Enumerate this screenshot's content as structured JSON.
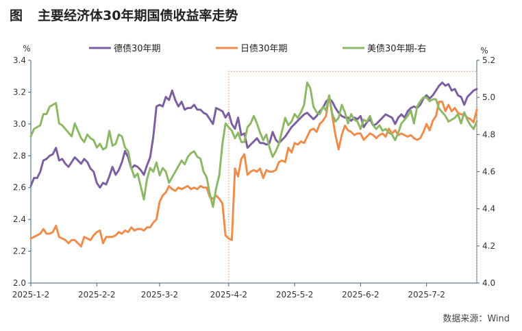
{
  "page": {
    "figure_label": "图",
    "title": "主要经济体30年期国债收益率走势",
    "source": "数据来源：Wind"
  },
  "chart_data": {
    "type": "line",
    "title": "主要经济体30年期国债收益率走势",
    "left_axis_unit": "%",
    "right_axis_unit": "%",
    "ylim_left": [
      2.0,
      3.4
    ],
    "ylim_right": [
      4.0,
      5.2
    ],
    "yticks_left": [
      "2.0",
      "2.2",
      "2.4",
      "2.6",
      "2.8",
      "3.0",
      "3.2",
      "3.4"
    ],
    "yticks_right": [
      "4.0",
      "4.2",
      "4.4",
      "4.6",
      "4.8",
      "5.0",
      "5.2"
    ],
    "xlim": [
      0,
      142
    ],
    "xticks": [
      {
        "label": "2025-1-2",
        "t": 0
      },
      {
        "label": "2025-2-2",
        "t": 21
      },
      {
        "label": "2025-3-2",
        "t": 41
      },
      {
        "label": "2025-4-2",
        "t": 63
      },
      {
        "label": "2025-5-2",
        "t": 84
      },
      {
        "label": "2025-6-2",
        "t": 105
      },
      {
        "label": "2025-7-2",
        "t": 126
      }
    ],
    "highlight_region": {
      "t_start": 63,
      "t_end": 142,
      "y_top_left": 3.33,
      "style": "dotted"
    },
    "series": [
      {
        "name": "德债30年期",
        "axis": "left",
        "color": "#7b5fa0",
        "x": [
          0,
          1,
          2,
          3,
          4,
          5,
          6,
          7,
          8,
          9,
          10,
          11,
          12,
          13,
          14,
          15,
          16,
          17,
          18,
          19,
          20,
          21,
          22,
          23,
          24,
          25,
          26,
          27,
          28,
          29,
          30,
          31,
          32,
          33,
          34,
          35,
          36,
          37,
          38,
          39,
          40,
          41,
          42,
          43,
          44,
          45,
          46,
          47,
          48,
          49,
          50,
          51,
          52,
          53,
          54,
          55,
          56,
          57,
          58,
          59,
          60,
          61,
          62,
          63,
          64,
          65,
          66,
          67,
          68,
          69,
          70,
          71,
          72,
          73,
          74,
          75,
          76,
          77,
          78,
          79,
          80,
          81,
          82,
          83,
          84,
          85,
          86,
          87,
          88,
          89,
          90,
          91,
          92,
          93,
          94,
          95,
          96,
          97,
          98,
          99,
          100,
          101,
          102,
          103,
          104,
          105,
          106,
          107,
          108,
          109,
          110,
          111,
          112,
          113,
          114,
          115,
          116,
          117,
          118,
          119,
          120,
          121,
          122,
          123,
          124,
          125,
          126,
          127,
          128,
          129,
          130,
          131,
          132,
          133,
          134,
          135,
          136,
          137,
          138,
          139,
          140,
          141,
          142
        ],
        "y": [
          2.61,
          2.66,
          2.66,
          2.7,
          2.77,
          2.78,
          2.8,
          2.81,
          2.85,
          2.77,
          2.78,
          2.75,
          2.73,
          2.76,
          2.79,
          2.77,
          2.75,
          2.78,
          2.76,
          2.72,
          2.7,
          2.63,
          2.6,
          2.63,
          2.62,
          2.67,
          2.73,
          2.68,
          2.71,
          2.76,
          2.83,
          2.79,
          2.72,
          2.74,
          2.73,
          2.71,
          2.68,
          2.74,
          2.79,
          2.92,
          3.11,
          3.12,
          3.11,
          3.17,
          3.15,
          3.21,
          3.15,
          3.11,
          3.14,
          3.09,
          3.1,
          3.1,
          3.12,
          3.09,
          3.09,
          3.07,
          3.06,
          3.03,
          3.0,
          3.1,
          3.09,
          3.08,
          3.04,
          3.07,
          3.0,
          2.97,
          3.04,
          2.93,
          2.94,
          2.85,
          2.87,
          2.89,
          2.91,
          2.88,
          2.88,
          2.87,
          2.88,
          2.95,
          2.9,
          2.88,
          2.9,
          2.92,
          2.95,
          2.98,
          3.0,
          3.02,
          3.04,
          3.06,
          3.07,
          3.05,
          3.03,
          3.05,
          3.08,
          3.1,
          3.14,
          3.16,
          3.14,
          3.1,
          3.07,
          3.05,
          3.04,
          3.04,
          3.02,
          3.04,
          3.03,
          3.05,
          2.98,
          3.01,
          3.03,
          2.99,
          3.0,
          3.02,
          3.04,
          3.06,
          3.05,
          3.04,
          3.0,
          3.04,
          3.06,
          3.04,
          3.08,
          3.1,
          3.11,
          3.1,
          3.12,
          3.16,
          3.18,
          3.16,
          3.18,
          3.21,
          3.24,
          3.26,
          3.24,
          3.25,
          3.21,
          3.22,
          3.18,
          3.17,
          3.12,
          3.17,
          3.19,
          3.21,
          3.22
        ]
      },
      {
        "name": "日债30年期",
        "axis": "left",
        "color": "#ef8c4a",
        "x": [
          0,
          1,
          2,
          3,
          4,
          5,
          6,
          7,
          8,
          9,
          10,
          11,
          12,
          13,
          14,
          15,
          16,
          17,
          18,
          19,
          20,
          21,
          22,
          23,
          24,
          25,
          26,
          27,
          28,
          29,
          30,
          31,
          32,
          33,
          34,
          35,
          36,
          37,
          38,
          39,
          40,
          41,
          42,
          43,
          44,
          45,
          46,
          47,
          48,
          49,
          50,
          51,
          52,
          53,
          54,
          55,
          56,
          57,
          58,
          59,
          60,
          61,
          62,
          63,
          64,
          65,
          66,
          67,
          68,
          69,
          70,
          71,
          72,
          73,
          74,
          75,
          76,
          77,
          78,
          79,
          80,
          81,
          82,
          83,
          84,
          85,
          86,
          87,
          88,
          89,
          90,
          91,
          92,
          93,
          94,
          95,
          96,
          97,
          98,
          99,
          100,
          101,
          102,
          103,
          104,
          105,
          106,
          107,
          108,
          109,
          110,
          111,
          112,
          113,
          114,
          115,
          116,
          117,
          118,
          119,
          120,
          121,
          122,
          123,
          124,
          125,
          126,
          127,
          128,
          129,
          130,
          131,
          132,
          133,
          134,
          135,
          136,
          137,
          138,
          139,
          140,
          141,
          142
        ],
        "y": [
          2.28,
          2.29,
          2.3,
          2.31,
          2.34,
          2.31,
          2.31,
          2.32,
          2.36,
          2.29,
          2.28,
          2.27,
          2.25,
          2.27,
          2.27,
          2.25,
          2.23,
          2.29,
          2.28,
          2.27,
          2.3,
          2.32,
          2.33,
          2.25,
          2.29,
          2.29,
          2.29,
          2.3,
          2.32,
          2.31,
          2.33,
          2.32,
          2.35,
          2.33,
          2.34,
          2.34,
          2.33,
          2.35,
          2.35,
          2.38,
          2.4,
          2.51,
          2.55,
          2.57,
          2.61,
          2.59,
          2.58,
          2.6,
          2.59,
          2.6,
          2.61,
          2.59,
          2.6,
          2.59,
          2.61,
          2.6,
          2.6,
          2.54,
          2.53,
          2.55,
          2.53,
          2.5,
          2.3,
          2.28,
          2.27,
          2.72,
          2.67,
          2.78,
          2.81,
          2.68,
          2.7,
          2.71,
          2.7,
          2.72,
          2.66,
          2.71,
          2.7,
          2.7,
          2.71,
          2.76,
          2.77,
          2.76,
          2.85,
          2.82,
          2.88,
          2.87,
          2.89,
          2.88,
          2.92,
          2.96,
          2.97,
          2.95,
          3.0,
          3.02,
          3.05,
          3.18,
          3.05,
          2.93,
          2.84,
          2.93,
          2.99,
          2.96,
          2.95,
          2.93,
          2.94,
          2.94,
          2.9,
          2.92,
          2.94,
          2.93,
          2.91,
          2.93,
          2.94,
          2.92,
          2.97,
          2.94,
          2.96,
          2.93,
          2.94,
          2.93,
          2.92,
          2.93,
          2.91,
          2.9,
          2.91,
          2.95,
          3.0,
          2.96,
          3.02,
          3.05,
          3.14,
          3.14,
          3.08,
          3.12,
          3.08,
          3.1,
          3.07,
          3.06,
          3.06,
          3.04,
          3.03,
          3.01,
          3.09
        ]
      },
      {
        "name": "美债30年期-右",
        "axis": "right",
        "color": "#8db866",
        "x": [
          0,
          1,
          2,
          3,
          4,
          5,
          6,
          7,
          8,
          9,
          10,
          11,
          12,
          13,
          14,
          15,
          16,
          17,
          18,
          19,
          20,
          21,
          22,
          23,
          24,
          25,
          26,
          27,
          28,
          29,
          30,
          31,
          32,
          33,
          34,
          35,
          36,
          37,
          38,
          39,
          40,
          41,
          42,
          43,
          44,
          45,
          46,
          47,
          48,
          49,
          50,
          51,
          52,
          53,
          54,
          55,
          56,
          57,
          58,
          59,
          60,
          61,
          62,
          63,
          64,
          65,
          66,
          67,
          68,
          69,
          70,
          71,
          72,
          73,
          74,
          75,
          76,
          77,
          78,
          79,
          80,
          81,
          82,
          83,
          84,
          85,
          86,
          87,
          88,
          89,
          90,
          91,
          92,
          93,
          94,
          95,
          96,
          97,
          98,
          99,
          100,
          101,
          102,
          103,
          104,
          105,
          106,
          107,
          108,
          109,
          110,
          111,
          112,
          113,
          114,
          115,
          116,
          117,
          118,
          119,
          120,
          121,
          122,
          123,
          124,
          125,
          126,
          127,
          128,
          129,
          130,
          131,
          132,
          133,
          134,
          135,
          136,
          137,
          138,
          139,
          140,
          141,
          142
        ],
        "y": [
          4.79,
          4.83,
          4.84,
          4.85,
          4.91,
          4.91,
          4.95,
          4.96,
          4.97,
          4.86,
          4.85,
          4.83,
          4.81,
          4.79,
          4.86,
          4.82,
          4.78,
          4.76,
          4.8,
          4.78,
          4.77,
          4.73,
          4.75,
          4.72,
          4.73,
          4.82,
          4.74,
          4.75,
          4.8,
          4.79,
          4.73,
          4.71,
          4.62,
          4.57,
          4.59,
          4.52,
          4.45,
          4.56,
          4.62,
          4.6,
          4.65,
          4.58,
          4.62,
          4.6,
          4.54,
          4.57,
          4.6,
          4.63,
          4.66,
          4.64,
          4.68,
          4.7,
          4.71,
          4.68,
          4.67,
          4.6,
          4.57,
          4.48,
          4.41,
          4.51,
          4.58,
          4.75,
          4.86,
          4.84,
          4.82,
          4.78,
          4.81,
          4.76,
          4.76,
          4.84,
          4.86,
          4.9,
          4.86,
          4.81,
          4.77,
          4.8,
          4.73,
          4.68,
          4.71,
          4.75,
          4.82,
          4.89,
          4.85,
          4.87,
          4.91,
          4.89,
          4.92,
          4.96,
          5.08,
          5.05,
          4.95,
          4.92,
          4.91,
          4.95,
          4.93,
          5.01,
          4.91,
          4.87,
          4.89,
          4.96,
          4.92,
          4.86,
          4.91,
          4.88,
          4.87,
          4.83,
          4.88,
          4.87,
          4.9,
          4.85,
          4.83,
          4.85,
          4.82,
          4.83,
          4.81,
          4.8,
          4.77,
          4.81,
          4.86,
          4.88,
          4.9,
          4.93,
          4.86,
          4.95,
          4.98,
          5.0,
          5.0,
          4.98,
          4.99,
          4.99,
          4.94,
          4.92,
          4.9,
          4.87,
          4.88,
          4.89,
          4.91,
          4.86,
          4.92,
          4.88,
          4.85,
          4.83,
          4.87
        ]
      }
    ]
  }
}
